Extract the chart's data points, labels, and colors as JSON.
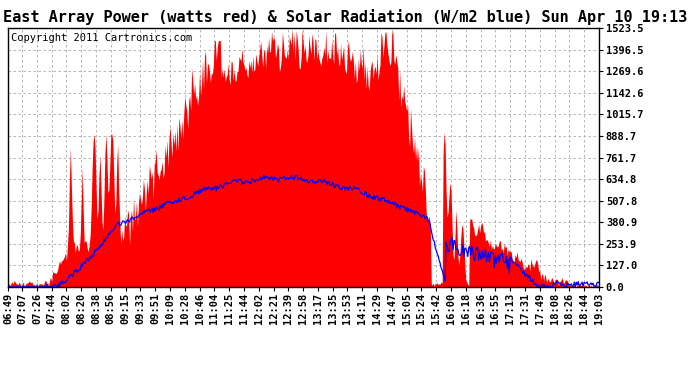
{
  "title": "East Array Power (watts red) & Solar Radiation (W/m2 blue) Sun Apr 10 19:13",
  "copyright": "Copyright 2011 Cartronics.com",
  "background_color": "#ffffff",
  "plot_bg_color": "#ffffff",
  "grid_color": "#aaaaaa",
  "y_min": 0.0,
  "y_max": 1523.5,
  "y_ticks": [
    0.0,
    127.0,
    253.9,
    380.9,
    507.8,
    634.8,
    761.7,
    888.7,
    1015.7,
    1142.6,
    1269.6,
    1396.5,
    1523.5
  ],
  "x_labels": [
    "06:49",
    "07:07",
    "07:26",
    "07:44",
    "08:02",
    "08:20",
    "08:38",
    "08:56",
    "09:15",
    "09:33",
    "09:51",
    "10:09",
    "10:28",
    "10:46",
    "11:04",
    "11:25",
    "11:44",
    "12:02",
    "12:21",
    "12:39",
    "12:58",
    "13:17",
    "13:35",
    "13:53",
    "14:11",
    "14:29",
    "14:47",
    "15:05",
    "15:24",
    "15:42",
    "16:00",
    "16:18",
    "16:36",
    "16:55",
    "17:13",
    "17:31",
    "17:49",
    "18:08",
    "18:26",
    "18:44",
    "19:03"
  ],
  "red_color": "#ff0000",
  "blue_color": "#0000ff",
  "title_fontsize": 11,
  "tick_fontsize": 7.5,
  "copyright_fontsize": 7.5
}
